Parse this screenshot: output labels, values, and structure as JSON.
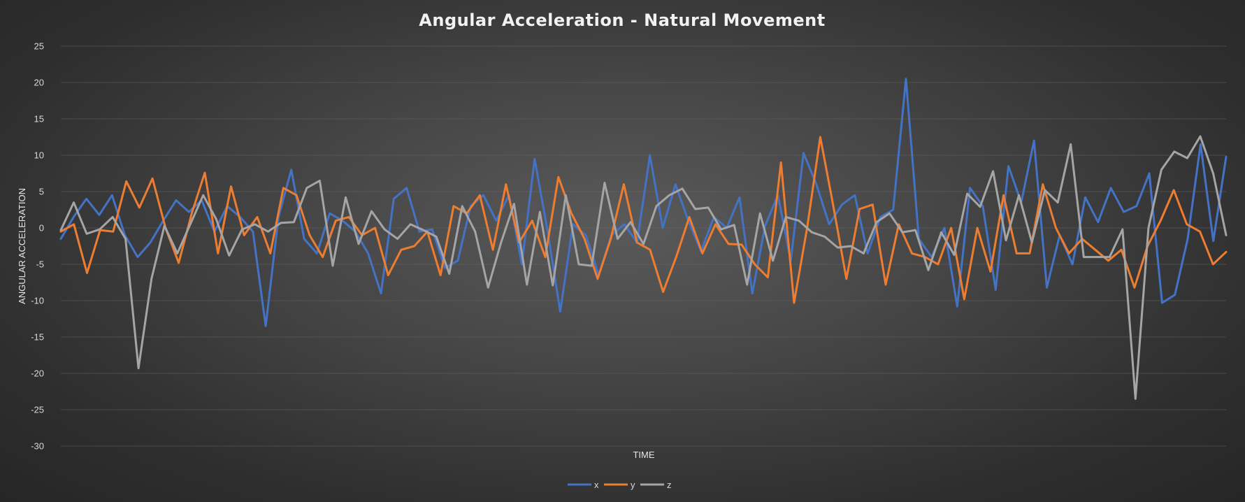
{
  "chart_data": {
    "type": "line",
    "title": "Angular Acceleration - Natural Movement",
    "xlabel": "TIME",
    "ylabel": "ANGULAR ACCELERATION",
    "ylim": [
      -30,
      25
    ],
    "yticks": [
      25,
      20,
      15,
      10,
      5,
      0,
      -5,
      -10,
      -15,
      -20,
      -25,
      -30
    ],
    "grid": true,
    "legend_position": "bottom",
    "series": [
      {
        "name": "x",
        "color": "#4472c4",
        "values": [
          -1.5,
          1.5,
          4,
          1.8,
          4.5,
          -1,
          -4,
          -2,
          1,
          3.8,
          2.2,
          3.8,
          -0.5,
          3,
          1.5,
          -0.5,
          -13.5,
          1.5,
          8,
          -1.5,
          -3.5,
          2,
          1,
          -0.5,
          -3.5,
          -9,
          4,
          5.5,
          -0.5,
          -0.2,
          -5.5,
          -4.5,
          3,
          4.5,
          1,
          4.5,
          -5,
          9.5,
          -0.3,
          -11.5,
          0.5,
          -1,
          -6.5,
          -1,
          0.5,
          -2,
          10,
          0,
          6,
          1,
          -3.2,
          1.5,
          0,
          4.2,
          -9,
          0.3,
          4.5,
          -4.5,
          10.3,
          6,
          0.5,
          3.2,
          4.5,
          -3.5,
          1.5,
          2.5,
          20.5,
          -1.5,
          -4,
          0,
          -10.8,
          5.5,
          3,
          -8.5,
          8.5,
          3.5,
          12,
          -8.2,
          -1,
          -5,
          4.2,
          0.8,
          5.5,
          2.2,
          3,
          7.5,
          -10.3,
          -9.2,
          -1.5,
          11.5,
          -1.8,
          9.8
        ]
      },
      {
        "name": "y",
        "color": "#ed7d31",
        "values": [
          -0.5,
          0.5,
          -6.2,
          -0.3,
          -0.5,
          6.4,
          2.8,
          6.8,
          0,
          -4.8,
          2,
          7.6,
          -3.5,
          5.7,
          -1,
          1.5,
          -3.5,
          5.5,
          4.5,
          -1,
          -4,
          1,
          1.5,
          -1,
          0,
          -6.5,
          -3,
          -2.5,
          -0.5,
          -6.5,
          3,
          2,
          4.5,
          -3,
          6,
          -2,
          1,
          -4,
          7,
          2,
          -1.5,
          -7,
          -1.5,
          6,
          -2,
          -3,
          -8.8,
          -4,
          1.5,
          -3.5,
          0.5,
          -2.2,
          -2.3,
          -5,
          -6.8,
          9,
          -10.3,
          0,
          12.5,
          3,
          -7,
          2.6,
          3.2,
          -7.8,
          0.5,
          -3.5,
          -4,
          -5,
          0,
          -9.8,
          0,
          -6,
          4.5,
          -3.5,
          -3.5,
          6,
          0,
          -3.5,
          -1.5,
          -3,
          -4.5,
          -3,
          -8.2,
          -2.5,
          1,
          5.2,
          0.5,
          -0.5,
          -5,
          -3.3
        ]
      },
      {
        "name": "z",
        "color": "#a5a5a5",
        "values": [
          -0.3,
          3.5,
          -0.8,
          -0.2,
          1.5,
          -1.5,
          -19.3,
          -7,
          0.3,
          -3.5,
          0.5,
          4.5,
          1.2,
          -3.8,
          -0.2,
          0.5,
          -0.5,
          0.7,
          0.8,
          5.5,
          6.5,
          -5.2,
          4.2,
          -2.2,
          2.3,
          -0.2,
          -1.5,
          0.5,
          -0.3,
          -1.2,
          -6.3,
          3,
          -0.5,
          -8.2,
          -2,
          3.3,
          -7.8,
          2.2,
          -7.9,
          4.5,
          -5,
          -5.2,
          6.2,
          -1.5,
          0.8,
          -2.2,
          3,
          4.5,
          5.4,
          2.6,
          2.8,
          -0.2,
          0.4,
          -7.8,
          2,
          -4.5,
          1.5,
          1,
          -0.6,
          -1.2,
          -2.7,
          -2.5,
          -3.5,
          0.8,
          2,
          -0.6,
          -0.3,
          -5.8,
          -0.6,
          -3.7,
          4.7,
          2.9,
          7.8,
          -1.7,
          4.5,
          -2,
          5.2,
          3.5,
          11.5,
          -4,
          -4,
          -4,
          -0.2,
          -23.5,
          0,
          8,
          10.5,
          9.6,
          12.6,
          7.5,
          -1
        ]
      }
    ]
  }
}
